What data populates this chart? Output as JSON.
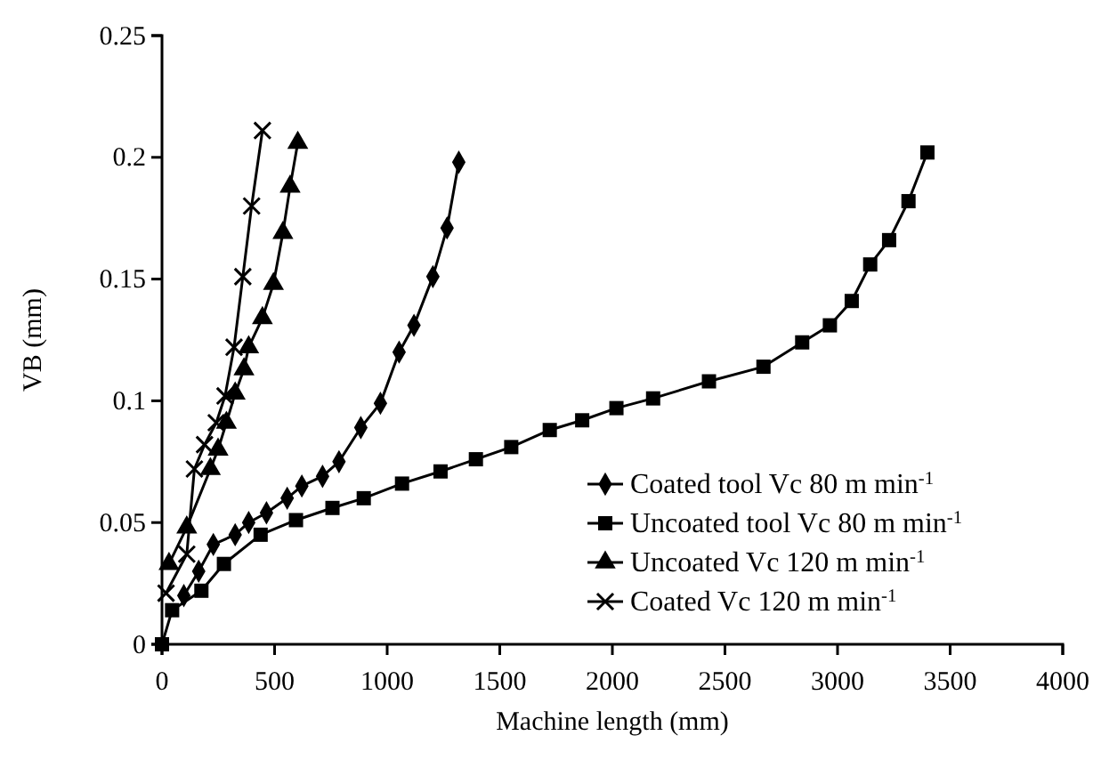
{
  "chart_data": {
    "type": "line",
    "xlabel": "Machine length (mm)",
    "ylabel": "VB (mm)",
    "xlim": [
      0,
      4000
    ],
    "xticks": [
      0,
      500,
      1000,
      1500,
      2000,
      2500,
      3000,
      3500,
      4000
    ],
    "ylim": [
      0,
      0.25
    ],
    "yticks": [
      0,
      0.05,
      0.1,
      0.15,
      0.2,
      0.25
    ],
    "grid": false,
    "legend": "right",
    "line_style": "solid",
    "series": [
      {
        "name": "Coated tool Vc 80 m min$^{-1}$",
        "color": "#000000",
        "marker": "diamond",
        "x": [
          97,
          163,
          228,
          325,
          385,
          464,
          556,
          621,
          713,
          786,
          883,
          970,
          1053,
          1119,
          1203,
          1266,
          1318
        ],
        "values": [
          0.02,
          0.03,
          0.041,
          0.045,
          0.05,
          0.054,
          0.06,
          0.065,
          0.069,
          0.075,
          0.089,
          0.099,
          0.12,
          0.131,
          0.151,
          0.171,
          0.198
        ]
      },
      {
        "name": "Uncoated tool Vc 80 m min$^{-1}$",
        "color": "#000000",
        "marker": "square",
        "x": [
          0,
          45,
          175,
          275,
          438,
          595,
          757,
          896,
          1066,
          1237,
          1394,
          1551,
          1722,
          1866,
          2018,
          2181,
          2429,
          2671,
          2843,
          2966,
          3063,
          3145,
          3229,
          3315,
          3399
        ],
        "values": [
          0,
          0.014,
          0.022,
          0.033,
          0.045,
          0.051,
          0.056,
          0.06,
          0.066,
          0.071,
          0.076,
          0.081,
          0.088,
          0.092,
          0.097,
          0.101,
          0.108,
          0.114,
          0.124,
          0.131,
          0.141,
          0.156,
          0.166,
          0.182,
          0.202
        ]
      },
      {
        "name": "Uncoated Vc 120 m min$^{-1}$",
        "color": "#000000",
        "marker": "triangle",
        "x": [
          31,
          110,
          215,
          249,
          286,
          325,
          364,
          385,
          446,
          495,
          537,
          569,
          603
        ],
        "values": [
          0.033,
          0.048,
          0.072,
          0.08,
          0.091,
          0.103,
          0.113,
          0.122,
          0.134,
          0.148,
          0.169,
          0.188,
          0.206
        ]
      },
      {
        "name": "Coated Vc 120 m min$^{-1}$",
        "color": "#000000",
        "marker": "cross",
        "x": [
          18,
          110,
          144,
          189,
          241,
          280,
          320,
          359,
          398,
          446
        ],
        "values": [
          0.021,
          0.037,
          0.072,
          0.082,
          0.091,
          0.102,
          0.122,
          0.151,
          0.18,
          0.211
        ]
      }
    ]
  }
}
